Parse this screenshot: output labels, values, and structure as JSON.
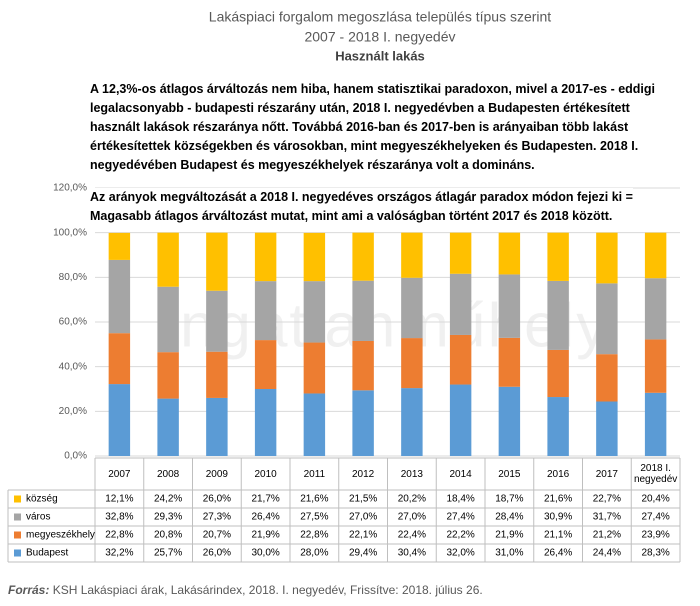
{
  "chart_data": {
    "type": "stacked_bar",
    "title": "Lakáspiaci forgalom megoszlása település típus szerint",
    "subtitle": "2007 - 2018 I. negyedév",
    "subtitle2": "Használt lakás",
    "annotations": [
      [
        "A 12,3%-os átlagos árváltozás nem hiba, hanem statisztikai paradoxon, mivel a 2017-es - eddigi",
        "legalacsonyabb - budapesti részarány után,  2018 I. negyedévben a Budapesten értékesített",
        "használt lakások részaránya nőtt. Továbbá 2016-ban és 2017-ben is arányaiban több lakást",
        "értékesítettek községekben és városokban, mint megyeszékhelyeken és Budapesten. 2018 I.",
        "negyedévében Budapest és megyeszékhelyek részaránya volt a domináns."
      ],
      [
        "Az arányok megváltozását a 2018 I. negyedéves országos átlagár paradox módon fejezi ki =",
        "Magasabb átlagos árváltozást mutat, mint ami a valóságban történt 2017 és 2018 között."
      ]
    ],
    "watermark": "Ingatlanműhely",
    "source_label": "Forrás:",
    "source": "KSH Lakáspiaci árak, Lakásárindex, 2018. I. negyedév, Frissítve: 2018. július 26.",
    "categories": [
      "2007",
      "2008",
      "2009",
      "2010",
      "2011",
      "2012",
      "2013",
      "2014",
      "2015",
      "2016",
      "2017",
      "2018 I. negyedév"
    ],
    "series": [
      {
        "name": "község",
        "color": "#ffc000",
        "values": [
          12.1,
          24.2,
          26.0,
          21.7,
          21.6,
          21.5,
          20.2,
          18.4,
          18.7,
          21.6,
          22.7,
          20.4
        ],
        "value_labels": [
          "12,1%",
          "24,2%",
          "26,0%",
          "21,7%",
          "21,6%",
          "21,5%",
          "20,2%",
          "18,4%",
          "18,7%",
          "21,6%",
          "22,7%",
          "20,4%"
        ]
      },
      {
        "name": "város",
        "color": "#a5a5a5",
        "values": [
          32.8,
          29.3,
          27.3,
          26.4,
          27.5,
          27.0,
          27.0,
          27.4,
          28.4,
          30.9,
          31.7,
          27.4
        ],
        "value_labels": [
          "32,8%",
          "29,3%",
          "27,3%",
          "26,4%",
          "27,5%",
          "27,0%",
          "27,0%",
          "27,4%",
          "28,4%",
          "30,9%",
          "31,7%",
          "27,4%"
        ]
      },
      {
        "name": "megyeszékhely",
        "color": "#ed7d31",
        "values": [
          22.8,
          20.8,
          20.7,
          21.9,
          22.8,
          22.1,
          22.4,
          22.2,
          21.9,
          21.1,
          21.2,
          23.9
        ],
        "value_labels": [
          "22,8%",
          "20,8%",
          "20,7%",
          "21,9%",
          "22,8%",
          "22,1%",
          "22,4%",
          "22,2%",
          "21,9%",
          "21,1%",
          "21,2%",
          "23,9%"
        ]
      },
      {
        "name": "Budapest",
        "color": "#5b9bd5",
        "values": [
          32.2,
          25.7,
          26.0,
          30.0,
          28.0,
          29.4,
          30.4,
          32.0,
          31.0,
          26.4,
          24.4,
          28.3
        ],
        "value_labels": [
          "32,2%",
          "25,7%",
          "26,0%",
          "30,0%",
          "28,0%",
          "29,4%",
          "30,4%",
          "32,0%",
          "31,0%",
          "26,4%",
          "24,4%",
          "28,3%"
        ]
      }
    ],
    "ylim": [
      0,
      120
    ],
    "yticks": [
      {
        "value": 0,
        "label": "0,0%"
      },
      {
        "value": 20,
        "label": "20,0%"
      },
      {
        "value": 40,
        "label": "40,0%"
      },
      {
        "value": 60,
        "label": "60,0%"
      },
      {
        "value": 80,
        "label": "80,0%"
      },
      {
        "value": 100,
        "label": "100,0%"
      },
      {
        "value": 120,
        "label": "120,0%"
      }
    ],
    "grid": true
  }
}
